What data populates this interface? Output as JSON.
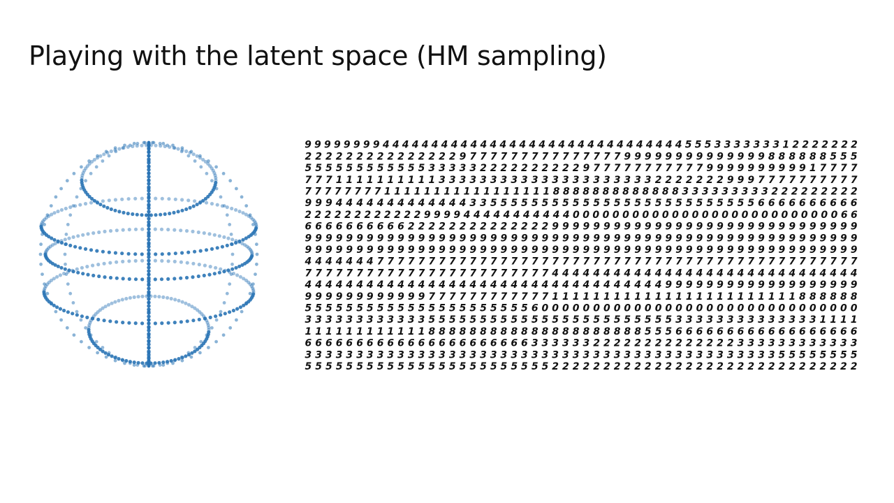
{
  "slide": {
    "title": "Playing with the latent space (HM sampling)",
    "sphere_color": "#2a74b5",
    "digit_grid": {
      "rows": [
        "999999994444444444444444444444444444444555333333312222222",
        "222222222222222977777777777777799999999999999888888555",
        "555555555555333332222222222977777777777999999999917777",
        "777111111111133333333333333333333322222229997777777777",
        "77777777111111111111111118888888888888333333333222222222",
        "999444444444444433555555555555555555555555556666666666",
        "22222222222299994444444444400000000000000000000000000066",
        "666666666622222222222222999999999999999999999999999999",
        "999999999999999999999999999999999999999999999999999999",
        "999999999999999999999999999999999999999999999999999999",
        "444444477777777777777777777777777777777777777777777777",
        "777777777777777777777777444444444444444444444444444444",
        "444444444444444444444444444444444449999999999999999999",
        "999999999999777777777777111111111111111111111111888888",
        "555555555555555555555560000000000000000000000000000000",
        "333333333333555555555555555555555555333333333333331111",
        "111111111111888888888888888888888555666666666666666666",
        "666666666666666666666633333322222222222222333333333333",
        "333333333333333333333333333333333333333333333355555555",
        "555555555555555555555555222222222222222222222222222222"
      ]
    }
  }
}
